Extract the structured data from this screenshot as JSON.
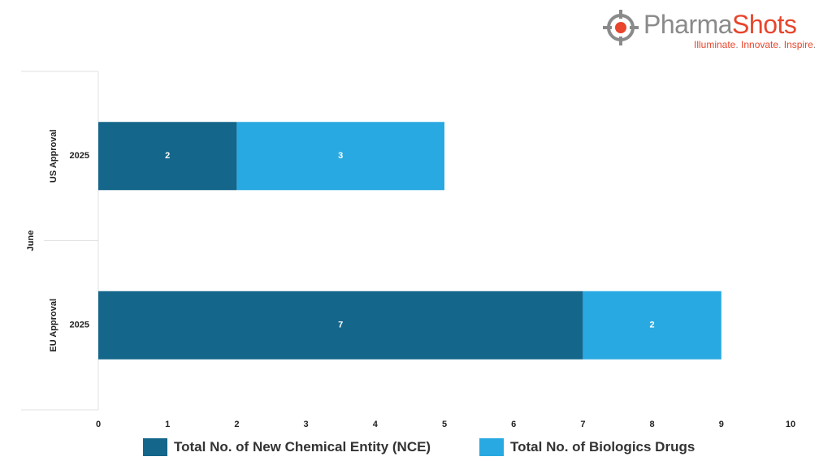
{
  "logo": {
    "name_part1": "Pharma",
    "name_part2": "Shots",
    "tagline_1": "Illuminate",
    "tagline_2": "Innovate",
    "tagline_3": "Inspire"
  },
  "chart_data": {
    "type": "bar",
    "orientation": "horizontal",
    "stacked": true,
    "group_label": "June",
    "categories": [
      {
        "group": "US Approval",
        "year": "2025"
      },
      {
        "group": "EU Approval",
        "year": "2025"
      }
    ],
    "series": [
      {
        "name": "Total No. of New Chemical Entity (NCE)",
        "values": [
          2,
          7
        ],
        "color": "#14668a"
      },
      {
        "name": "Total No. of Biologics Drugs",
        "values": [
          3,
          2
        ],
        "color": "#29a9e1"
      }
    ],
    "xlim": [
      0,
      10
    ],
    "x_ticks": [
      "0",
      "1",
      "2",
      "3",
      "4",
      "5",
      "6",
      "7",
      "8",
      "9",
      "10"
    ],
    "grid": false,
    "legend_position": "bottom"
  }
}
